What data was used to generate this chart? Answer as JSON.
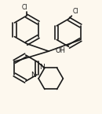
{
  "background_color": "#fdf8ee",
  "line_color": "#1a1a1a",
  "line_width": 1.2,
  "figsize": [
    1.3,
    1.45
  ],
  "dpi": 100,
  "xlim": [
    0,
    130
  ],
  "ylim": [
    0,
    145
  ]
}
